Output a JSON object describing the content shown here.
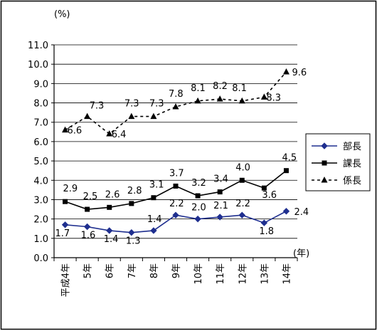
{
  "chart_data": {
    "type": "line",
    "ylabel": "(%)",
    "xlabel": "(年)",
    "ylim": [
      0,
      11
    ],
    "yticks": [
      "0.0",
      "1.0",
      "2.0",
      "3.0",
      "4.0",
      "5.0",
      "6.0",
      "7.0",
      "8.0",
      "9.0",
      "10.0",
      "11.0"
    ],
    "grid": true,
    "legend": "right",
    "categories": [
      "平成4年",
      "5年",
      "6年",
      "7年",
      "8年",
      "9年",
      "10年",
      "11年",
      "12年",
      "13年",
      "14年"
    ],
    "series": [
      {
        "name": "部長",
        "values": [
          1.7,
          1.6,
          1.4,
          1.3,
          1.4,
          2.2,
          2.0,
          2.1,
          2.2,
          1.8,
          2.4
        ],
        "labels": [
          "1.7",
          "1.6",
          "1.4",
          "1.3",
          "1.4",
          "2.2",
          "2.0",
          "2.1",
          "2.2",
          "1.8",
          "2.4"
        ],
        "color": "#1f2f8f",
        "marker": "diamond",
        "dash": "solid"
      },
      {
        "name": "課長",
        "values": [
          2.9,
          2.5,
          2.6,
          2.8,
          3.1,
          3.7,
          3.2,
          3.4,
          4.0,
          3.6,
          4.5
        ],
        "labels": [
          "2.9",
          "2.5",
          "2.6",
          "2.8",
          "3.1",
          "3.7",
          "3.2",
          "3.4",
          "4.0",
          "3.6",
          "4.5"
        ],
        "color": "#000000",
        "marker": "square",
        "dash": "solid"
      },
      {
        "name": "係長",
        "values": [
          6.6,
          7.3,
          6.4,
          7.3,
          7.3,
          7.8,
          8.1,
          8.2,
          8.1,
          8.3,
          9.6
        ],
        "labels": [
          "6.6",
          "7.3",
          "6.4",
          "7.3",
          "7.3",
          "7.8",
          "8.1",
          "8.2",
          "8.1",
          "8.3",
          "9.6"
        ],
        "color": "#000000",
        "marker": "triangle",
        "dash": "dashed"
      }
    ]
  }
}
